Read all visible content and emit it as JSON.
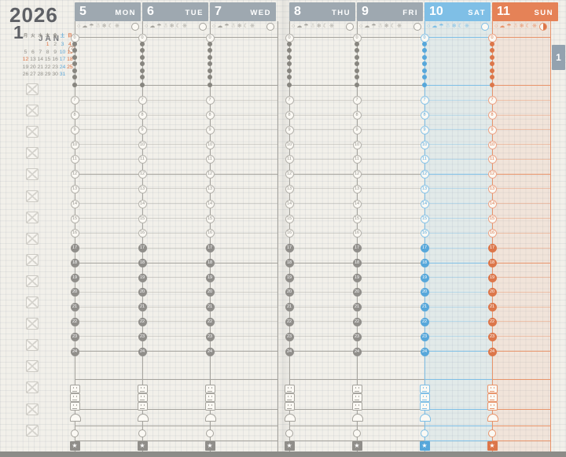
{
  "month_block": {
    "year": "2026",
    "month": "1",
    "month_abbr": "JAN",
    "week_marker": "2"
  },
  "mini_calendar": {
    "day_headers": [
      "月",
      "火",
      "水",
      "木",
      "金",
      "土",
      "日"
    ],
    "weeks": [
      [
        "",
        "",
        "",
        "1",
        "2",
        "3",
        "4"
      ],
      [
        "5",
        "6",
        "7",
        "8",
        "9",
        "10",
        "11"
      ],
      [
        "12",
        "13",
        "14",
        "15",
        "16",
        "17",
        "18"
      ],
      [
        "19",
        "20",
        "21",
        "22",
        "23",
        "24",
        "25"
      ],
      [
        "26",
        "27",
        "28",
        "29",
        "30",
        "31",
        ""
      ]
    ],
    "holidays": [
      "1",
      "12"
    ],
    "marked_week_index": 1
  },
  "sidebar": {
    "checkbox_rows": 17
  },
  "days": [
    {
      "date": "5",
      "weekday": "MON",
      "variant": "gray"
    },
    {
      "date": "6",
      "weekday": "TUE",
      "variant": "gray"
    },
    {
      "date": "7",
      "weekday": "WED",
      "variant": "gray"
    },
    {
      "date": "8",
      "weekday": "THU",
      "variant": "gray"
    },
    {
      "date": "9",
      "weekday": "FRI",
      "variant": "gray"
    },
    {
      "date": "10",
      "weekday": "SAT",
      "variant": "sat"
    },
    {
      "date": "11",
      "weekday": "SUN",
      "variant": "sun",
      "moon_phase": "half"
    }
  ],
  "weather_icons": [
    {
      "glyph": "○",
      "name": "sun-icon"
    },
    {
      "glyph": "☁",
      "name": "cloud-icon"
    },
    {
      "glyph": "☂",
      "name": "umbrella-icon"
    },
    {
      "glyph": "☃",
      "name": "snowman-icon"
    },
    {
      "glyph": "❄",
      "name": "snowflake-icon"
    },
    {
      "glyph": "☾",
      "name": "crescent-moon-icon"
    },
    {
      "glyph": "※",
      "name": "reference-mark-icon"
    }
  ],
  "timeline": {
    "start_hour": "0",
    "night_bead_count": 6,
    "hours": [
      "7",
      "8",
      "9",
      "10",
      "11",
      "12",
      "13",
      "14",
      "15",
      "16",
      "17",
      "18",
      "19",
      "20",
      "21",
      "22",
      "23",
      "24"
    ],
    "emphasis_hours": [
      "12",
      "18",
      "24"
    ],
    "evening_from": "17"
  },
  "tracker": {
    "meal_rows": 3,
    "star_glyph": "★"
  },
  "page_tab": {
    "label": "1"
  },
  "colors": {
    "header_gray": "#9EA8B0",
    "saturday_blue": "#7FBFE6",
    "sunday_orange": "#E58257",
    "calendar_blue": "#5FA8D8",
    "calendar_orange": "#E0703F",
    "paper_cream": "#F2F0EA",
    "ink_gray": "#5E6065",
    "footer_gray": "#8C8C88"
  }
}
